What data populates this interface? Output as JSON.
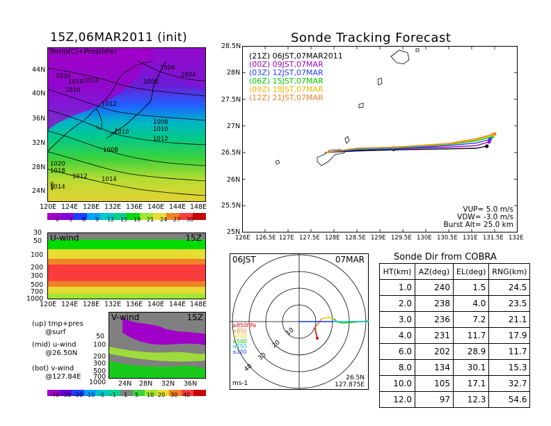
{
  "left": {
    "init_title": "15Z,06MAR2011 (init)",
    "map_label": "Temp(C)+Pres(hPa)",
    "lat_ticks": [
      "44N",
      "40N",
      "36N",
      "32N",
      "28N",
      "24N"
    ],
    "lon_ticks": [
      "120E",
      "124E",
      "128E",
      "132E",
      "136E",
      "140E",
      "144E",
      "148E"
    ],
    "isobar_labels": [
      "1006",
      "1004",
      "1020",
      "1018",
      "1014",
      "1016",
      "1008",
      "1012",
      "1010",
      "1008",
      "1010",
      "1012",
      "1008",
      "1020",
      "1018",
      "1012",
      "1014",
      "1014"
    ],
    "temp_colorbar": [
      "0",
      "3",
      "6",
      "9",
      "12",
      "15",
      "18",
      "21",
      "24",
      "27",
      "30"
    ],
    "uwind_label": "U-wind",
    "uwind_time": "15Z",
    "p_ticks": [
      "30",
      "50",
      "100",
      "200",
      "300",
      "500",
      "700",
      "1000"
    ],
    "p_ticks_small": [
      "@sfc"
    ],
    "vwind_label": "V-wind",
    "vwind_time": "15Z",
    "vwind_p_ticks": [
      "50",
      "100",
      "200",
      "300",
      "500",
      "700",
      "1000"
    ],
    "vwind_lat_ticks": [
      "24N",
      "28N",
      "32N",
      "36N"
    ],
    "vwind_colorbar": [
      "-40",
      "-30",
      "-20",
      "-10",
      "-5",
      "-1",
      "1",
      "5",
      "10",
      "20",
      "30",
      "40"
    ],
    "notes": {
      "up": "(up) tmp+pres\n      @surf",
      "mid": "(mid) u-wind\n      @26.50N",
      "bot": "(bot) v-wind\n      @127.84E"
    },
    "colors": {
      "temp_scale": [
        "#a000c8",
        "#8200dc",
        "#1e3cff",
        "#00a0ff",
        "#00c8c8",
        "#00d28c",
        "#00dc00",
        "#a0e632",
        "#e6dc32",
        "#f08228",
        "#fa3c3c"
      ]
    }
  },
  "forecast": {
    "title": "Sonde Tracking Forecast",
    "lat_ticks": [
      "28.5N",
      "28N",
      "27.5N",
      "27N",
      "26.5N",
      "26N",
      "25.5N",
      "25N"
    ],
    "lon_ticks": [
      "126E",
      "126.5E",
      "127E",
      "127.5E",
      "128E",
      "128.5E",
      "129E",
      "129.5E",
      "130E",
      "130.5E",
      "131E",
      "131.5E",
      "132E"
    ],
    "legend": [
      {
        "text": "(21Z)  06JST,07MAR2011",
        "color": "#000000"
      },
      {
        "text": "(00Z)  09JST,07MAR",
        "color": "#a000c8"
      },
      {
        "text": "(03Z)  12JST,07MAR",
        "color": "#1e3cff"
      },
      {
        "text": "(06Z)  15JST,07MAR",
        "color": "#00c800"
      },
      {
        "text": "(09Z)  18JST,07MAR",
        "color": "#f0b400"
      },
      {
        "text": "(12Z)  21JST,07MAR",
        "color": "#f08228"
      }
    ],
    "params": {
      "vup": "VUP=  5.0 m/s",
      "vdw": "VDW= -3.0 m/s",
      "burst": "Burst Alt=  25.0 km"
    }
  },
  "polar": {
    "time_left": "06JST",
    "date_right": "07MAR",
    "unit": "ms-1",
    "location_lat": "26.5N",
    "location_lon": "127.875E",
    "ring_labels": [
      "10",
      "20",
      "30",
      "40"
    ],
    "pressure_legend": [
      {
        "text": "≥850hPa",
        "color": "#e60000"
      },
      {
        "text": "≤850",
        "color": "#f08228"
      },
      {
        "text": "≤700",
        "color": "#f0c800"
      },
      {
        "text": "≤500",
        "color": "#00c800"
      },
      {
        "text": "≤250",
        "color": "#00b4e6"
      },
      {
        "text": "≤100",
        "color": "#1e3cff"
      }
    ]
  },
  "table": {
    "title": "Sonde Dir from COBRA",
    "headers": [
      "HT(km)",
      "AZ(deg)",
      "EL(deg)",
      "RNG(km)"
    ],
    "rows": [
      [
        "1.0",
        "240",
        "1.5",
        "24.5"
      ],
      [
        "2.0",
        "238",
        "4.0",
        "23.5"
      ],
      [
        "3.0",
        "236",
        "7.2",
        "21.1"
      ],
      [
        "4.0",
        "231",
        "11.7",
        "17.9"
      ],
      [
        "6.0",
        "202",
        "28.9",
        "11.7"
      ],
      [
        "8.0",
        "134",
        "30.1",
        "15.3"
      ],
      [
        "10.0",
        "105",
        "17.1",
        "32.7"
      ],
      [
        "12.0",
        "97",
        "12.3",
        "54.6"
      ]
    ]
  },
  "chart_data": {
    "type": "line",
    "title": "Sonde Tracking Forecast",
    "xlabel": "",
    "ylabel": "",
    "xlim": [
      126,
      132
    ],
    "ylim": [
      25,
      28.5
    ],
    "series": [
      {
        "name": "(21Z) 06JST,07MAR2011",
        "x": [
          127.8,
          128.5,
          129.3,
          130.5,
          131.1,
          131.33
        ],
        "y": [
          26.5,
          26.53,
          26.55,
          26.57,
          26.58,
          26.62
        ]
      },
      {
        "name": "(00Z) 09JST,07MAR",
        "x": [
          127.8,
          128.5,
          129.3,
          130.5,
          131.1,
          131.38
        ],
        "y": [
          26.5,
          26.55,
          26.57,
          26.6,
          26.63,
          26.7
        ]
      },
      {
        "name": "(03Z) 12JST,07MAR",
        "x": [
          127.8,
          128.5,
          129.3,
          130.5,
          131.1,
          131.4
        ],
        "y": [
          26.5,
          26.55,
          26.57,
          26.63,
          26.68,
          26.75
        ]
      },
      {
        "name": "(06Z) 15JST,07MAR",
        "x": [
          127.8,
          128.5,
          129.3,
          130.5,
          131.1,
          131.45
        ],
        "y": [
          26.5,
          26.57,
          26.59,
          26.65,
          26.72,
          26.8
        ]
      },
      {
        "name": "(09Z) 18JST,07MAR",
        "x": [
          127.8,
          128.5,
          129.3,
          130.5,
          131.1,
          131.45
        ],
        "y": [
          26.5,
          26.58,
          26.6,
          26.66,
          26.74,
          26.83
        ]
      },
      {
        "name": "(12Z) 21JST,07MAR",
        "x": [
          127.8,
          128.5,
          129.3,
          130.5,
          131.1,
          131.5
        ],
        "y": [
          26.5,
          26.58,
          26.6,
          26.67,
          26.76,
          26.85
        ]
      }
    ]
  }
}
